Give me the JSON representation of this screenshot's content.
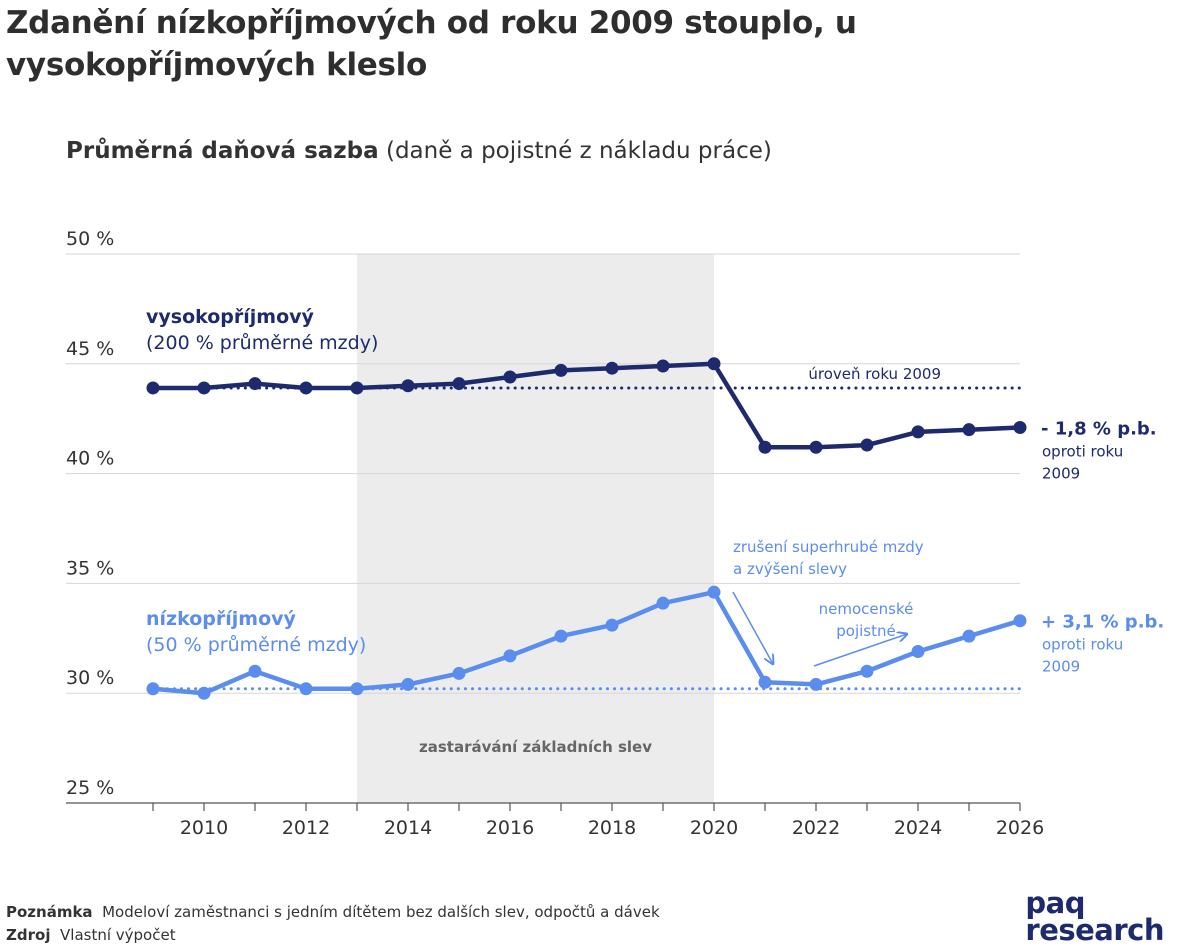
{
  "title": "Zdanění nízkopříjmových od roku 2009 stouplo, u vysokopříjmových kleslo",
  "subtitle": {
    "bold": "Průměrná daňová sazba",
    "rest": " (daně a pojistné z nákladu práce)"
  },
  "footnote": {
    "note_key": "Poznámka",
    "note_text": "Modeloví zaměstnanci s jedním dítětem bez dalších slev, odpočtů a dávek",
    "source_key": "Zdroj",
    "source_text": "Vlastní výpočet"
  },
  "logo": {
    "line1": "paq",
    "line2": "research"
  },
  "colors": {
    "high": "#1e2a6e",
    "low": "#5b8def",
    "shade": "#ececec",
    "grid": "#d6d6d6",
    "axis": "#555555"
  },
  "chart_data": {
    "type": "line",
    "ylim": [
      25,
      50
    ],
    "xlim": [
      2009,
      2026
    ],
    "yticks": [
      {
        "value": 50,
        "label": "50 %"
      },
      {
        "value": 45,
        "label": "45 %"
      },
      {
        "value": 40,
        "label": "40 %"
      },
      {
        "value": 35,
        "label": "35 %"
      },
      {
        "value": 30,
        "label": "30 %"
      },
      {
        "value": 25,
        "label": "25 %"
      }
    ],
    "xticks": [
      2010,
      2012,
      2014,
      2016,
      2018,
      2020,
      2022,
      2024,
      2026
    ],
    "x": [
      2009,
      2010,
      2011,
      2012,
      2013,
      2014,
      2015,
      2016,
      2017,
      2018,
      2019,
      2020,
      2021,
      2022,
      2023,
      2024,
      2025,
      2026
    ],
    "series": [
      {
        "key": "high",
        "name": "vysokopříjmový",
        "name_sub": "(200 % průměrné mzdy)",
        "values": [
          43.9,
          43.9,
          44.1,
          43.9,
          43.9,
          44.0,
          44.1,
          44.4,
          44.7,
          44.8,
          44.9,
          45.0,
          41.2,
          41.2,
          41.3,
          41.9,
          42.0,
          42.1
        ],
        "end_label": "- 1,8 % p.b.",
        "end_sub": [
          "oproti roku",
          "2009"
        ]
      },
      {
        "key": "low",
        "name": "nízkopříjmový",
        "name_sub": "(50 % průměrné mzdy)",
        "values": [
          30.2,
          30.0,
          31.0,
          30.2,
          30.2,
          30.4,
          30.9,
          31.7,
          32.6,
          33.1,
          34.1,
          34.6,
          30.5,
          30.4,
          31.0,
          31.9,
          32.6,
          33.3
        ],
        "end_label": "+ 3,1 % p.b.",
        "end_sub": [
          "oproti roku",
          "2009"
        ]
      }
    ],
    "reference_lines": [
      {
        "series": "high",
        "value": 43.9,
        "label": "úroveň roku 2009"
      },
      {
        "series": "low",
        "value": 30.2
      }
    ],
    "shaded_region": {
      "from": 2013,
      "to": 2020,
      "label": "zastarávání základních slev"
    },
    "annotations": [
      {
        "lines": [
          "zrušení superhrubé mzdy",
          "a zvýšení slevy"
        ]
      },
      {
        "lines": [
          "nemocenské",
          "pojistné"
        ]
      }
    ]
  }
}
